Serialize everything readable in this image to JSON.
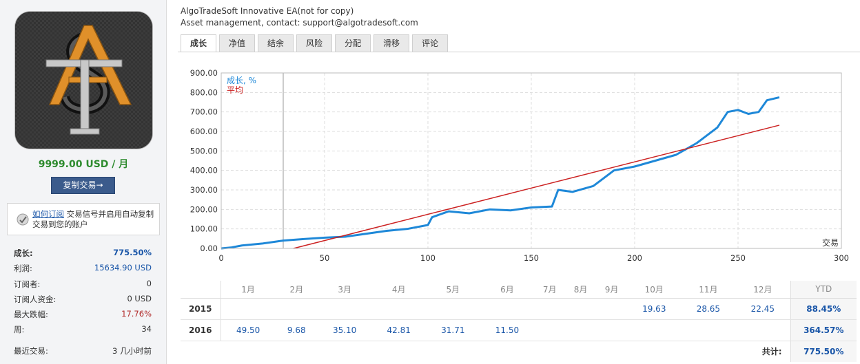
{
  "sidebar": {
    "price": "9999.00 USD / 月",
    "copy_button": "复制交易→",
    "subscribe": {
      "link": "如何订阅",
      "text": "交易信号并启用自动复制交易到您的账户"
    },
    "stats": [
      {
        "label": "成长:",
        "value": "775.50%"
      },
      {
        "label": "利润:",
        "value": "15634.90 USD"
      },
      {
        "label": "订阅者:",
        "value": "0"
      },
      {
        "label": "订阅人资金:",
        "value": "0 USD"
      },
      {
        "label": "最大跌幅:",
        "value": "17.76%"
      },
      {
        "label": "周:",
        "value": "34"
      },
      {
        "label": "最近交易:",
        "value": "3 几小时前"
      }
    ]
  },
  "header": {
    "title": "AlgoTradeSoft Innovative EA(not for copy)",
    "subtitle": "Asset management, contact: support@algotradesoft.com"
  },
  "tabs": [
    "成长",
    "净值",
    "结余",
    "风险",
    "分配",
    "滑移",
    "评论"
  ],
  "chart_data": {
    "type": "line",
    "xlabel": "交易",
    "ylabel": "",
    "xlim": [
      0,
      300
    ],
    "ylim": [
      0,
      900
    ],
    "x_ticks": [
      "0",
      "50",
      "100",
      "150",
      "200",
      "250",
      "300"
    ],
    "y_ticks": [
      "0.00",
      "100.00",
      "200.00",
      "300.00",
      "400.00",
      "500.00",
      "600.00",
      "700.00",
      "800.00",
      "900.00"
    ],
    "grid": true,
    "legend": "top-left",
    "vertical_marker_x": 30,
    "series": [
      {
        "name": "成长, %",
        "color": "#1e88d8",
        "x": [
          0,
          5,
          10,
          20,
          30,
          40,
          50,
          60,
          70,
          80,
          90,
          100,
          102,
          110,
          120,
          130,
          140,
          150,
          160,
          163,
          170,
          180,
          190,
          200,
          210,
          220,
          230,
          240,
          245,
          250,
          255,
          260,
          264,
          270
        ],
        "y": [
          0,
          5,
          15,
          25,
          40,
          48,
          55,
          60,
          75,
          90,
          100,
          120,
          160,
          190,
          180,
          200,
          195,
          210,
          215,
          300,
          290,
          320,
          400,
          420,
          450,
          480,
          540,
          620,
          700,
          710,
          690,
          700,
          760,
          775
        ]
      },
      {
        "name": "平均",
        "color": "#cc2222",
        "x": [
          35,
          270
        ],
        "y": [
          0,
          632
        ]
      }
    ]
  },
  "monthly": {
    "months": [
      "1月",
      "2月",
      "3月",
      "4月",
      "5月",
      "6月",
      "7月",
      "8月",
      "9月",
      "10月",
      "11月",
      "12月"
    ],
    "ytd_label": "YTD",
    "rows": [
      {
        "year": "2015",
        "values": [
          "",
          "",
          "",
          "",
          "",
          "",
          "",
          "",
          "",
          "19.63",
          "28.65",
          "22.45"
        ],
        "ytd": "88.45%"
      },
      {
        "year": "2016",
        "values": [
          "49.50",
          "9.68",
          "35.10",
          "42.81",
          "31.71",
          "11.50",
          "",
          "",
          "",
          "",
          "",
          ""
        ],
        "ytd": "364.57%"
      }
    ],
    "total_label": "共计:",
    "total_value": "775.50%"
  },
  "colors": {
    "accent": "#1a56a8",
    "price": "#2e8b2e",
    "drawdown": "#b02828",
    "button": "#3b5b8c"
  }
}
